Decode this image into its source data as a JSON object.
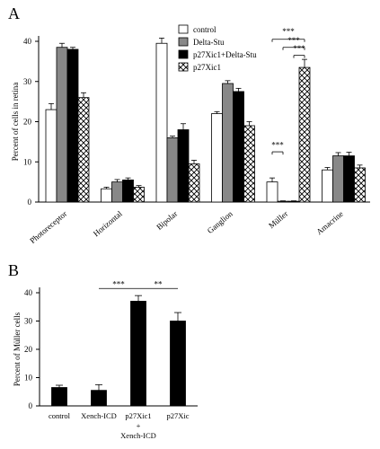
{
  "chart_data": [
    {
      "panel": "A",
      "type": "bar",
      "ylabel": "Percent of cells in retina",
      "ylim": [
        0,
        40
      ],
      "yticks": [
        0,
        10,
        20,
        30,
        40
      ],
      "categories": [
        "Photoreceptor",
        "Horizontal",
        "Bipolar",
        "Ganglion",
        "Müller",
        "Amacrine"
      ],
      "series": [
        {
          "name": "control",
          "fill": "#ffffff",
          "values": [
            23,
            3.3,
            39.5,
            22,
            5,
            8
          ],
          "err": [
            1.5,
            0.4,
            1.3,
            0.5,
            1.0,
            0.6
          ]
        },
        {
          "name": "Delta-Stu",
          "fill": "#888888",
          "values": [
            38.5,
            5,
            16,
            29.5,
            0.2,
            11.5
          ],
          "err": [
            1.0,
            0.6,
            0.4,
            0.7,
            0.1,
            0.8
          ]
        },
        {
          "name": "p27Xic1+Delta-Stu",
          "fill": "#000000",
          "values": [
            38,
            5.5,
            18,
            27.5,
            0.2,
            11.5
          ],
          "err": [
            0.5,
            0.5,
            1.5,
            0.8,
            0.1,
            0.9
          ]
        },
        {
          "name": "p27Xic1",
          "fill": "hatch",
          "values": [
            26,
            3.7,
            9.5,
            19,
            33.5,
            8.5
          ],
          "err": [
            1.2,
            0.4,
            0.9,
            1.0,
            2.0,
            0.7
          ]
        }
      ],
      "legend_position": "top-right",
      "annotations": [
        "***",
        "***",
        "***",
        "***"
      ]
    },
    {
      "panel": "B",
      "type": "bar",
      "ylabel": "Percent of Müller cells",
      "ylim": [
        0,
        40
      ],
      "yticks": [
        0,
        10,
        20,
        30,
        40
      ],
      "categories": [
        "control",
        "Xench-ICD",
        "p27Xic1 + Xench-ICD",
        "p27Xic"
      ],
      "category_lines": [
        [
          "control"
        ],
        [
          "Xench-ICD"
        ],
        [
          "p27Xic1",
          "+",
          "Xench-ICD"
        ],
        [
          "p27Xic"
        ]
      ],
      "values": [
        6.5,
        5.5,
        37,
        30
      ],
      "err": [
        0.8,
        2.0,
        2.0,
        3.0
      ],
      "fill": "#000000",
      "annotations": [
        "***",
        "**"
      ]
    }
  ],
  "panel_labels": [
    "A",
    "B"
  ]
}
